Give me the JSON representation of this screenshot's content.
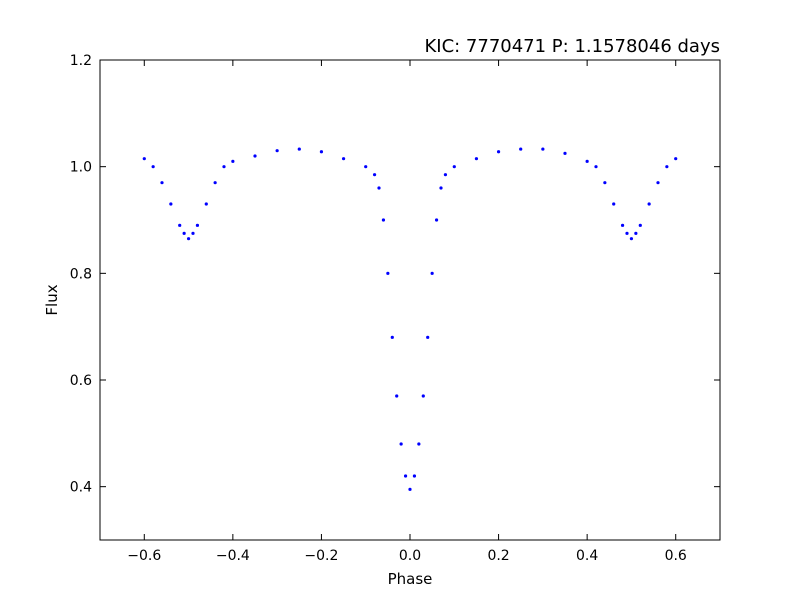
{
  "chart_data": {
    "type": "scatter",
    "title": "KIC: 7770471  P: 1.1578046 days",
    "xlabel": "Phase",
    "ylabel": "Flux",
    "xlim": [
      -0.7,
      0.7
    ],
    "ylim": [
      0.3,
      1.2
    ],
    "xticks": [
      -0.6,
      -0.4,
      -0.2,
      0.0,
      0.2,
      0.4,
      0.6
    ],
    "xtick_labels": [
      "−0.6",
      "−0.4",
      "−0.2",
      "0.0",
      "0.2",
      "0.4",
      "0.6"
    ],
    "yticks": [
      0.4,
      0.6,
      0.8,
      1.0,
      1.2
    ],
    "ytick_labels": [
      "0.4",
      "0.6",
      "0.8",
      "1.0",
      "1.2"
    ],
    "grid": false,
    "legend": "none",
    "marker_color": "#0000ff",
    "series": [
      {
        "x": [
          -0.6,
          -0.58,
          -0.56,
          -0.54,
          -0.52,
          -0.51,
          -0.5,
          -0.49,
          -0.48,
          -0.46,
          -0.44,
          -0.42,
          -0.4,
          -0.35,
          -0.3,
          -0.25,
          -0.2,
          -0.15,
          -0.1,
          -0.08,
          -0.07,
          -0.06,
          -0.05,
          -0.04,
          -0.03,
          -0.02,
          -0.01,
          0.0,
          0.01,
          0.02,
          0.03,
          0.04,
          0.05,
          0.06,
          0.07,
          0.08,
          0.1,
          0.15,
          0.2,
          0.25,
          0.3,
          0.35,
          0.4,
          0.42,
          0.44,
          0.46,
          0.48,
          0.49,
          0.5,
          0.51,
          0.52,
          0.54,
          0.56,
          0.58,
          0.6
        ],
        "y": [
          1.015,
          1.0,
          0.97,
          0.93,
          0.89,
          0.875,
          0.865,
          0.875,
          0.89,
          0.93,
          0.97,
          1.0,
          1.01,
          1.02,
          1.03,
          1.033,
          1.028,
          1.015,
          1.0,
          0.985,
          0.96,
          0.9,
          0.8,
          0.68,
          0.57,
          0.48,
          0.42,
          0.395,
          0.42,
          0.48,
          0.57,
          0.68,
          0.8,
          0.9,
          0.96,
          0.985,
          1.0,
          1.015,
          1.028,
          1.033,
          1.033,
          1.025,
          1.01,
          1.0,
          0.97,
          0.93,
          0.89,
          0.875,
          0.865,
          0.875,
          0.89,
          0.93,
          0.97,
          1.0,
          1.015
        ]
      }
    ]
  }
}
